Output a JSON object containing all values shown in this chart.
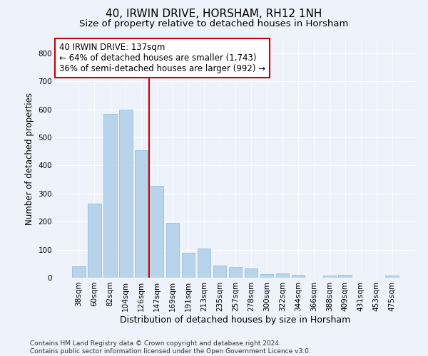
{
  "title": "40, IRWIN DRIVE, HORSHAM, RH12 1NH",
  "subtitle": "Size of property relative to detached houses in Horsham",
  "xlabel": "Distribution of detached houses by size in Horsham",
  "ylabel": "Number of detached properties",
  "categories": [
    "38sqm",
    "60sqm",
    "82sqm",
    "104sqm",
    "126sqm",
    "147sqm",
    "169sqm",
    "191sqm",
    "213sqm",
    "235sqm",
    "257sqm",
    "278sqm",
    "300sqm",
    "322sqm",
    "344sqm",
    "366sqm",
    "388sqm",
    "409sqm",
    "431sqm",
    "453sqm",
    "475sqm"
  ],
  "values": [
    40,
    265,
    583,
    600,
    455,
    328,
    195,
    90,
    103,
    42,
    37,
    32,
    13,
    15,
    10,
    0,
    8,
    10,
    0,
    0,
    7
  ],
  "bar_color": "#b8d4ea",
  "bar_edge_color": "#90b8d8",
  "vline_x_index": 4.5,
  "vline_color": "#cc0000",
  "annotation_text": "40 IRWIN DRIVE: 137sqm\n← 64% of detached houses are smaller (1,743)\n36% of semi-detached houses are larger (992) →",
  "annotation_box_color": "#ffffff",
  "annotation_box_edge_color": "#cc0000",
  "ylim": [
    0,
    850
  ],
  "yticks": [
    0,
    100,
    200,
    300,
    400,
    500,
    600,
    700,
    800
  ],
  "background_color": "#eef2fb",
  "plot_bg_color": "#eef2fb",
  "footer": "Contains HM Land Registry data © Crown copyright and database right 2024.\nContains public sector information licensed under the Open Government Licence v3.0.",
  "title_fontsize": 11,
  "subtitle_fontsize": 9.5,
  "xlabel_fontsize": 9,
  "ylabel_fontsize": 8.5,
  "tick_fontsize": 7.5,
  "annotation_fontsize": 8.5,
  "footer_fontsize": 6.5
}
